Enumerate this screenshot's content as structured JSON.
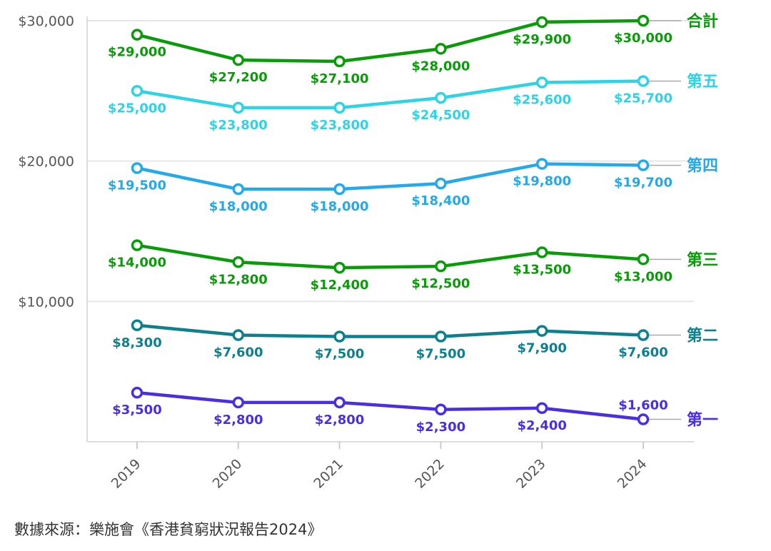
{
  "chart_data": {
    "type": "line",
    "x": [
      "2019",
      "2020",
      "2021",
      "2022",
      "2023",
      "2024"
    ],
    "ylim": [
      0,
      30000
    ],
    "yticks": [
      10000,
      20000,
      30000
    ],
    "ytick_labels": [
      "$10,000",
      "$20,000",
      "$30,000"
    ],
    "grid": true,
    "series": [
      {
        "name": "合計",
        "color": "#0a9a0a",
        "values": [
          29000,
          27200,
          27100,
          28000,
          29900,
          30000
        ],
        "labels": [
          "$29,000",
          "$27,200",
          "$27,100",
          "$28,000",
          "$29,900",
          "$30,000"
        ]
      },
      {
        "name": "第五",
        "color": "#2fd3e3",
        "values": [
          25000,
          23800,
          23800,
          24500,
          25600,
          25700
        ],
        "labels": [
          "$25,000",
          "$23,800",
          "$23,800",
          "$24,500",
          "$25,600",
          "$25,700"
        ]
      },
      {
        "name": "第四",
        "color": "#27a8e8",
        "values": [
          19500,
          18000,
          18000,
          18400,
          19800,
          19700
        ],
        "labels": [
          "$19,500",
          "$18,000",
          "$18,000",
          "$18,400",
          "$19,800",
          "$19,700"
        ]
      },
      {
        "name": "第三",
        "color": "#0a9a0a",
        "values": [
          14000,
          12800,
          12400,
          12500,
          13500,
          13000
        ],
        "labels": [
          "$14,000",
          "$12,800",
          "$12,400",
          "$12,500",
          "$13,500",
          "$13,000"
        ]
      },
      {
        "name": "第二",
        "color": "#0e7f8c",
        "values": [
          8300,
          7600,
          7500,
          7500,
          7900,
          7600
        ],
        "labels": [
          "$8,300",
          "$7,600",
          "$7,500",
          "$7,500",
          "$7,900",
          "$7,600"
        ]
      },
      {
        "name": "第一",
        "color": "#4a2fe0",
        "values": [
          3500,
          2800,
          2800,
          2300,
          2400,
          1600
        ],
        "labels": [
          "$3,500",
          "$2,800",
          "$2,800",
          "$2,300",
          "$2,400",
          "$1,600"
        ]
      }
    ],
    "source": "數據來源：樂施會《香港貧窮狀況報告2024》"
  }
}
